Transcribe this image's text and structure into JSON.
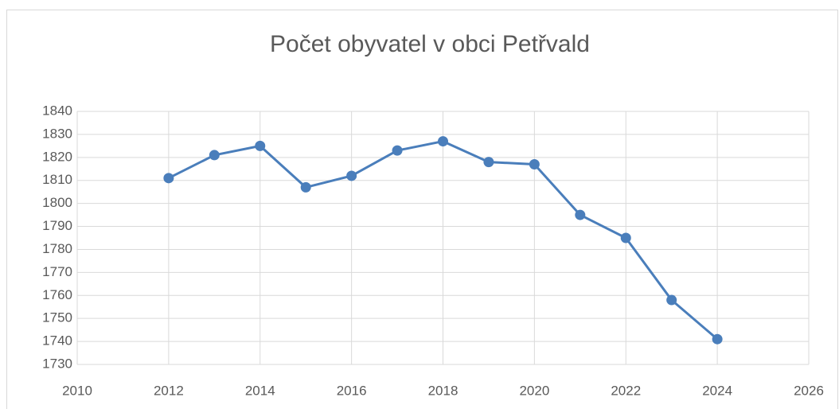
{
  "chart_data": {
    "type": "line",
    "title": "Počet obyvatel v obci Petřvald",
    "x": [
      2012,
      2013,
      2014,
      2015,
      2016,
      2017,
      2018,
      2019,
      2020,
      2021,
      2022,
      2023,
      2024
    ],
    "series": [
      {
        "name": "Počet obyvatel",
        "color": "#4a7ebb",
        "values": [
          1811,
          1821,
          1825,
          1807,
          1812,
          1823,
          1827,
          1818,
          1817,
          1795,
          1785,
          1758,
          1741
        ]
      }
    ],
    "xlim": [
      2010,
      2026
    ],
    "xticks": [
      2010,
      2012,
      2014,
      2016,
      2018,
      2020,
      2022,
      2024,
      2026
    ],
    "ylim": [
      1730,
      1840
    ],
    "yticks": [
      1730,
      1740,
      1750,
      1760,
      1770,
      1780,
      1790,
      1800,
      1810,
      1820,
      1830,
      1840
    ],
    "grid": true
  }
}
